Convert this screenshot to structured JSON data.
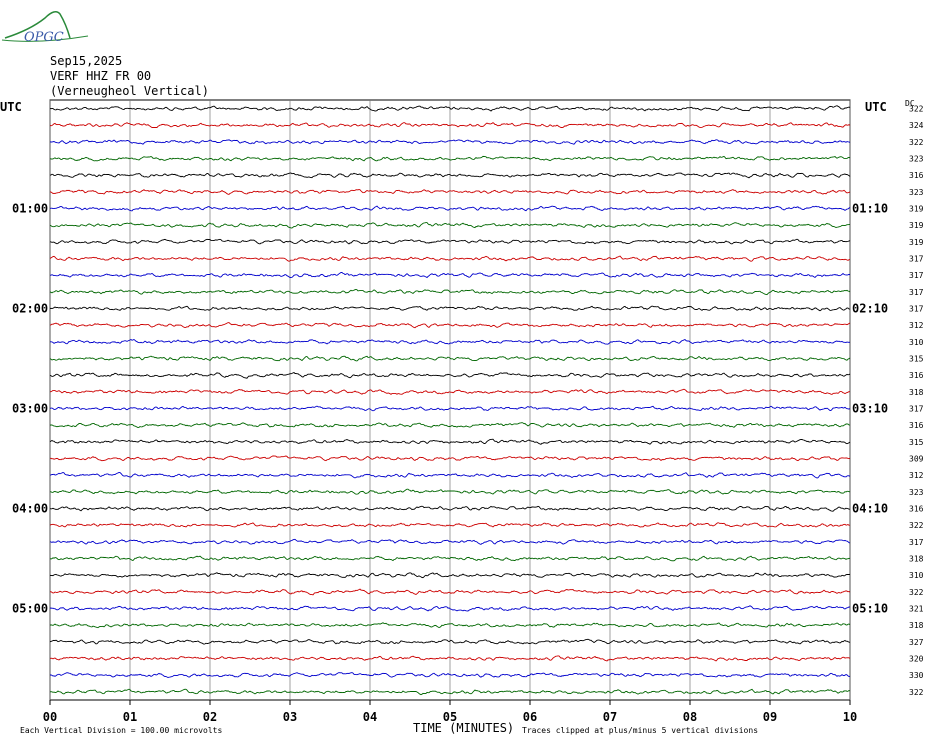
{
  "logo": "OPGC",
  "chart_data": {
    "type": "helicorder",
    "title": [
      "Sep15,2025",
      "VERF HHZ FR 00",
      "(Verneugheol Vertical)"
    ],
    "left_axis_label": "UTC",
    "right_axis_label": "UTC",
    "dc_label": "DC",
    "left_time_labels": [
      "01:00",
      "02:00",
      "03:00",
      "04:00",
      "05:00"
    ],
    "right_time_labels": [
      "01:10",
      "02:10",
      "03:10",
      "04:10",
      "05:10"
    ],
    "colors": [
      "#000000",
      "#cc0000",
      "#0000cc",
      "#006600"
    ],
    "dc_offsets": [
      322,
      324,
      322,
      323,
      316,
      323,
      319,
      319,
      319,
      317,
      317,
      317,
      317,
      312,
      310,
      315,
      316,
      318,
      317,
      316,
      315,
      309,
      312,
      323,
      316,
      322,
      317,
      318,
      310,
      322,
      321,
      318,
      327,
      320,
      330,
      322
    ],
    "xlim": [
      0,
      10
    ],
    "xticks": [
      {
        "value": 0,
        "label": "00"
      },
      {
        "value": 1,
        "label": "01"
      },
      {
        "value": 2,
        "label": "02"
      },
      {
        "value": 3,
        "label": "03"
      },
      {
        "value": 4,
        "label": "04"
      },
      {
        "value": 5,
        "label": "05"
      },
      {
        "value": 6,
        "label": "06"
      },
      {
        "value": 7,
        "label": "07"
      },
      {
        "value": 8,
        "label": "08"
      },
      {
        "value": 9,
        "label": "09"
      },
      {
        "value": 10,
        "label": "10"
      }
    ],
    "xlabel": "TIME (MINUTES)",
    "footnote_left": "Each Vertical Division =  100.00 microvolts",
    "footnote_right": "Traces clipped at plus/minus 5 vertical divisions"
  }
}
